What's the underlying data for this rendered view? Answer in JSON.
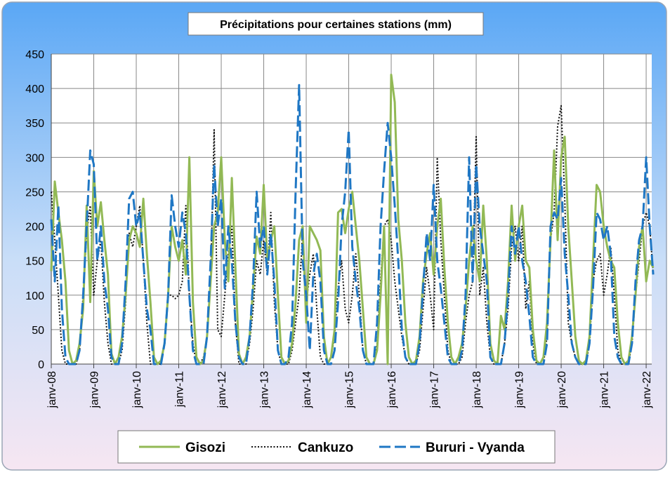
{
  "chart_data": {
    "type": "line",
    "title": "Précipitations pour certaines stations (mm)",
    "categories": [
      "janv-08",
      null,
      null,
      null,
      null,
      null,
      null,
      null,
      null,
      null,
      null,
      null,
      "janv-09",
      null,
      null,
      null,
      null,
      null,
      null,
      null,
      null,
      null,
      null,
      null,
      "janv-10",
      null,
      null,
      null,
      null,
      null,
      null,
      null,
      null,
      null,
      null,
      null,
      "janv-11",
      null,
      null,
      null,
      null,
      null,
      null,
      null,
      null,
      null,
      null,
      null,
      "janv-12",
      null,
      null,
      null,
      null,
      null,
      null,
      null,
      null,
      null,
      null,
      null,
      "janv-13",
      null,
      null,
      null,
      null,
      null,
      null,
      null,
      null,
      null,
      null,
      null,
      "janv-14",
      null,
      null,
      null,
      null,
      null,
      null,
      null,
      null,
      null,
      null,
      null,
      "janv-15",
      null,
      null,
      null,
      null,
      null,
      null,
      null,
      null,
      null,
      null,
      null,
      "janv-16",
      null,
      null,
      null,
      null,
      null,
      null,
      null,
      null,
      null,
      null,
      null,
      "janv-17",
      null,
      null,
      null,
      null,
      null,
      null,
      null,
      null,
      null,
      null,
      null,
      "janv-18",
      null,
      null,
      null,
      null,
      null,
      null,
      null,
      null,
      null,
      null,
      null,
      "janv-19",
      null,
      null,
      null,
      null,
      null,
      null,
      null,
      null,
      null,
      null,
      null,
      "janv-20",
      null,
      null,
      null,
      null,
      null,
      null,
      null,
      null,
      null,
      null,
      null,
      "janv-21",
      null,
      null,
      null,
      null,
      null,
      null,
      null,
      null,
      null,
      null,
      null,
      "janv-22",
      null,
      null
    ],
    "series": [
      {
        "name": "Gisozi",
        "color": "#92b955",
        "line_style": "solid",
        "values": [
          135,
          265,
          220,
          180,
          120,
          20,
          0,
          5,
          30,
          80,
          230,
          90,
          280,
          200,
          235,
          180,
          130,
          15,
          0,
          10,
          40,
          100,
          180,
          200,
          190,
          170,
          240,
          160,
          90,
          10,
          0,
          5,
          30,
          100,
          200,
          170,
          150,
          180,
          130,
          300,
          90,
          10,
          0,
          5,
          40,
          120,
          200,
          220,
          300,
          180,
          120,
          270,
          140,
          15,
          0,
          10,
          40,
          110,
          185,
          160,
          260,
          150,
          180,
          200,
          100,
          10,
          0,
          5,
          30,
          90,
          180,
          200,
          60,
          200,
          190,
          180,
          165,
          40,
          0,
          10,
          50,
          220,
          225,
          190,
          225,
          250,
          200,
          150,
          80,
          10,
          0,
          0,
          20,
          100,
          200,
          0,
          420,
          380,
          210,
          150,
          60,
          10,
          0,
          5,
          40,
          120,
          160,
          190,
          130,
          200,
          240,
          140,
          60,
          10,
          0,
          10,
          30,
          80,
          150,
          200,
          150,
          120,
          230,
          150,
          30,
          5,
          0,
          70,
          50,
          120,
          230,
          150,
          200,
          230,
          150,
          140,
          50,
          5,
          0,
          10,
          60,
          180,
          310,
          180,
          300,
          330,
          200,
          120,
          40,
          5,
          0,
          5,
          40,
          150,
          260,
          250,
          200,
          170,
          150,
          140,
          60,
          10,
          0,
          5,
          40,
          100,
          170,
          200,
          120,
          150,
          140
        ]
      },
      {
        "name": "Cankuzo",
        "color": "#111111",
        "line_style": "dotted",
        "values": [
          250,
          180,
          100,
          20,
          0,
          0,
          0,
          0,
          20,
          100,
          190,
          230,
          100,
          150,
          180,
          90,
          30,
          0,
          0,
          0,
          20,
          90,
          190,
          170,
          200,
          230,
          150,
          60,
          0,
          0,
          0,
          0,
          30,
          100,
          100,
          95,
          100,
          120,
          230,
          100,
          30,
          0,
          0,
          10,
          40,
          120,
          340,
          50,
          40,
          100,
          160,
          200,
          60,
          0,
          0,
          0,
          30,
          80,
          150,
          130,
          180,
          130,
          220,
          90,
          20,
          0,
          0,
          0,
          20,
          60,
          100,
          190,
          90,
          130,
          160,
          80,
          10,
          0,
          0,
          10,
          40,
          110,
          150,
          80,
          60,
          100,
          160,
          100,
          20,
          0,
          0,
          0,
          30,
          120,
          200,
          210,
          180,
          120,
          80,
          40,
          10,
          0,
          0,
          0,
          20,
          80,
          140,
          100,
          50,
          300,
          180,
          100,
          20,
          0,
          0,
          0,
          10,
          60,
          100,
          120,
          330,
          100,
          140,
          60,
          10,
          0,
          0,
          0,
          30,
          80,
          170,
          200,
          150,
          200,
          80,
          120,
          30,
          0,
          0,
          0,
          40,
          180,
          220,
          345,
          375,
          240,
          60,
          30,
          10,
          0,
          0,
          0,
          30,
          120,
          150,
          160,
          100,
          130,
          170,
          100,
          20,
          0,
          0,
          0,
          30,
          100,
          150,
          200,
          220,
          200,
          130
        ]
      },
      {
        "name": "Bururi - Vyanda",
        "color": "#1f77c4",
        "line_style": "dashed",
        "values": [
          210,
          120,
          230,
          80,
          10,
          0,
          0,
          0,
          20,
          100,
          200,
          310,
          290,
          150,
          200,
          120,
          80,
          10,
          0,
          0,
          30,
          120,
          240,
          250,
          200,
          220,
          150,
          80,
          50,
          0,
          0,
          0,
          30,
          100,
          245,
          200,
          170,
          220,
          190,
          100,
          20,
          0,
          0,
          0,
          40,
          150,
          290,
          200,
          240,
          110,
          200,
          150,
          60,
          10,
          0,
          0,
          40,
          120,
          250,
          170,
          200,
          130,
          190,
          120,
          20,
          0,
          0,
          10,
          60,
          250,
          405,
          150,
          100,
          20,
          130,
          160,
          120,
          20,
          0,
          0,
          20,
          90,
          200,
          250,
          340,
          170,
          120,
          80,
          20,
          0,
          0,
          0,
          60,
          200,
          280,
          350,
          300,
          230,
          150,
          50,
          10,
          0,
          0,
          0,
          30,
          110,
          190,
          150,
          260,
          150,
          110,
          60,
          10,
          0,
          0,
          0,
          20,
          100,
          300,
          120,
          290,
          200,
          160,
          120,
          10,
          0,
          0,
          0,
          30,
          100,
          200,
          160,
          200,
          150,
          120,
          70,
          10,
          0,
          0,
          0,
          30,
          200,
          220,
          210,
          270,
          160,
          100,
          30,
          10,
          0,
          0,
          0,
          30,
          110,
          220,
          210,
          180,
          200,
          160,
          40,
          10,
          0,
          0,
          0,
          30,
          120,
          180,
          200,
          300,
          200,
          130
        ]
      }
    ],
    "ylim": [
      0,
      450
    ],
    "yticks": [
      0,
      50,
      100,
      150,
      200,
      250,
      300,
      350,
      400,
      450
    ],
    "grid": true,
    "legend": "bottom"
  }
}
